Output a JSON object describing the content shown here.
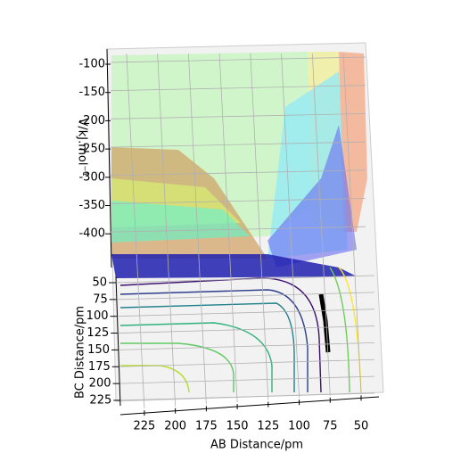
{
  "chart_data": {
    "type": "surface3d",
    "xlabel": "AB Distance/pm",
    "ylabel": "BC Distance/pm",
    "zlabel": "V/kJ.mol⁻¹",
    "xlim": [
      35,
      240
    ],
    "xticks": [
      225,
      200,
      175,
      150,
      125,
      100,
      75,
      50
    ],
    "ylim": [
      40,
      235
    ],
    "yticks": [
      50,
      75,
      100,
      125,
      150,
      175,
      200,
      225
    ],
    "zlim": [
      -460,
      -90
    ],
    "zticks": [
      -100,
      -150,
      -200,
      -250,
      -300,
      -350,
      -400
    ],
    "grid": true
  }
}
